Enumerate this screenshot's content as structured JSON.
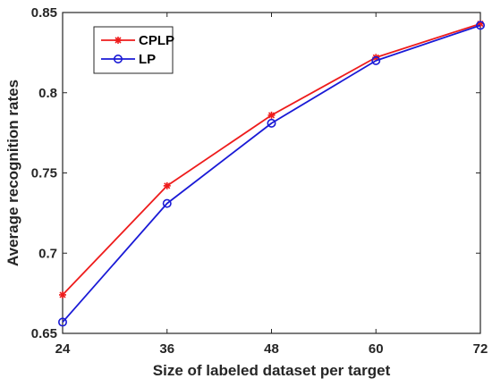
{
  "chart_data": {
    "type": "line",
    "title": "",
    "xlabel": "Size of labeled dataset per target",
    "ylabel": "Average recognition rates",
    "x": [
      24,
      36,
      48,
      60,
      72
    ],
    "xticks": [
      "24",
      "36",
      "48",
      "60",
      "72"
    ],
    "yticks": [
      "0.65",
      "0.7",
      "0.75",
      "0.8",
      "0.85"
    ],
    "xlim": [
      24,
      72
    ],
    "ylim": [
      0.65,
      0.85
    ],
    "grid": false,
    "legend_position": "top-left",
    "series": [
      {
        "name": "CPLP",
        "color": "#ee1c1c",
        "marker": "asterisk",
        "values": [
          0.674,
          0.742,
          0.786,
          0.822,
          0.843
        ]
      },
      {
        "name": "LP",
        "color": "#1a1ad6",
        "marker": "circle",
        "values": [
          0.657,
          0.731,
          0.781,
          0.82,
          0.842
        ]
      }
    ]
  }
}
